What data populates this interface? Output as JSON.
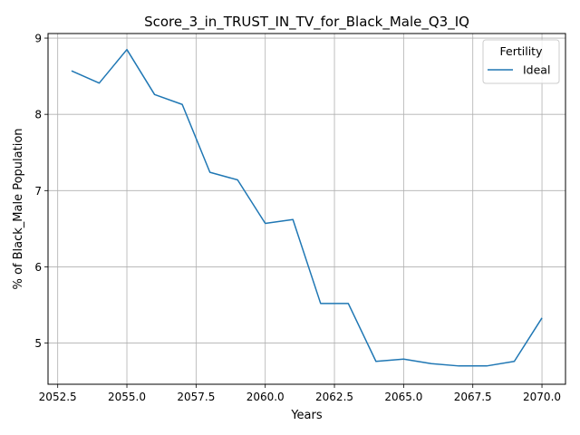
{
  "chart_data": {
    "type": "line",
    "title": "Score_3_in_TRUST_IN_TV_for_Black_Male_Q3_IQ",
    "xlabel": "Years",
    "ylabel": "% of Black_Male Population",
    "xlim": [
      2052.15,
      2070.85
    ],
    "ylim": [
      4.46,
      9.06
    ],
    "x_ticks": [
      2052.5,
      2055.0,
      2057.5,
      2060.0,
      2062.5,
      2065.0,
      2067.5,
      2070.0
    ],
    "x_tick_labels": [
      "2052.5",
      "2055.0",
      "2057.5",
      "2060.0",
      "2062.5",
      "2065.0",
      "2067.5",
      "2070.0"
    ],
    "y_ticks": [
      5,
      6,
      7,
      8,
      9
    ],
    "y_tick_labels": [
      "5",
      "6",
      "7",
      "8",
      "9"
    ],
    "grid": true,
    "legend": {
      "title": "Fertility",
      "position": "top-right"
    },
    "series": [
      {
        "name": "Ideal",
        "color": "#1f77b4",
        "x": [
          2053,
          2054,
          2055,
          2056,
          2057,
          2058,
          2059,
          2060,
          2061,
          2062,
          2063,
          2064,
          2065,
          2066,
          2067,
          2068,
          2069,
          2070
        ],
        "y": [
          8.57,
          8.41,
          8.85,
          8.26,
          8.13,
          7.24,
          7.14,
          6.57,
          6.62,
          5.52,
          5.52,
          4.76,
          4.79,
          4.73,
          4.7,
          4.7,
          4.76,
          5.33
        ]
      }
    ]
  }
}
